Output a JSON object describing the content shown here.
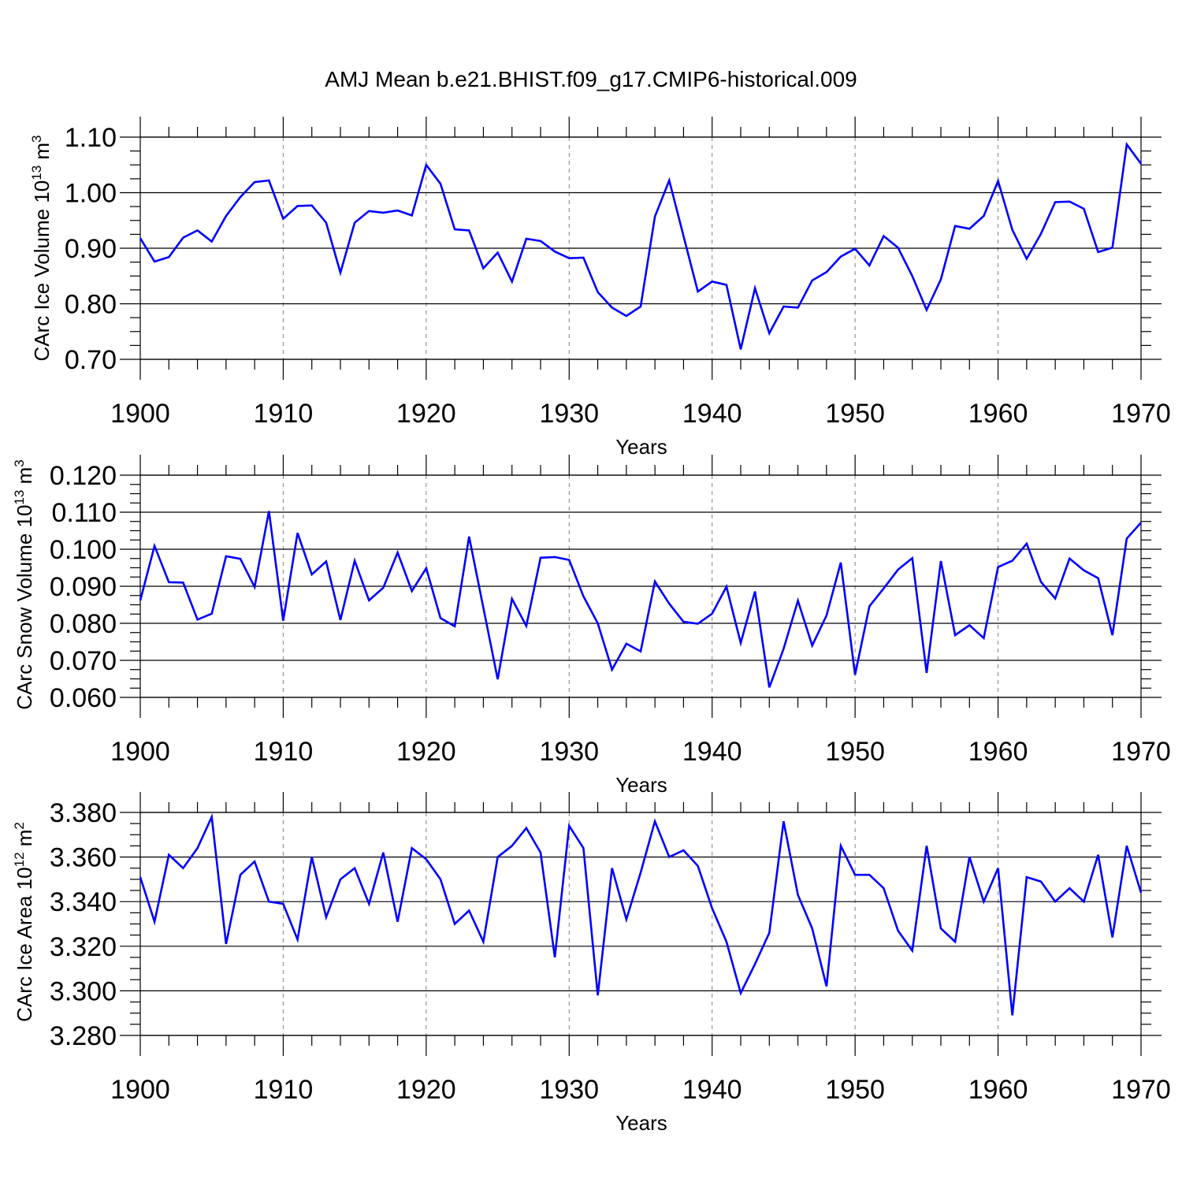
{
  "title": "AMJ Mean b.e21.BHIST.f09_g17.CMIP6-historical.009",
  "line_color": "#0000ff",
  "chart_data": [
    {
      "type": "line",
      "xlabel": "Years",
      "ylabel": "CArc Ice Volume 10",
      "ylabel_exp": "13",
      "ylabel_unit": " m",
      "ylabel_unit_exp": "3",
      "xlim": [
        1900,
        1970
      ],
      "ylim": [
        0.7,
        1.1
      ],
      "xticks": [
        1900,
        1910,
        1920,
        1930,
        1940,
        1950,
        1960,
        1970
      ],
      "xtick_labels": [
        "1900",
        "1910",
        "1920",
        "1930",
        "1940",
        "1950",
        "1960",
        "1970"
      ],
      "yticks": [
        0.7,
        0.8,
        0.9,
        1.0,
        1.1
      ],
      "ytick_labels": [
        "0.70",
        "0.80",
        "0.90",
        "1.00",
        "1.10"
      ],
      "grid": "vertical-dashed-at-major-x",
      "x_start": 1900,
      "values": [
        0.918,
        0.876,
        0.884,
        0.919,
        0.932,
        0.912,
        0.958,
        0.992,
        1.019,
        1.022,
        0.953,
        0.976,
        0.977,
        0.946,
        0.856,
        0.946,
        0.967,
        0.964,
        0.968,
        0.959,
        1.05,
        1.016,
        0.934,
        0.932,
        0.864,
        0.892,
        0.84,
        0.917,
        0.913,
        0.894,
        0.882,
        0.883,
        0.821,
        0.793,
        0.778,
        0.795,
        0.957,
        1.022,
        0.922,
        0.822,
        0.84,
        0.834,
        0.718,
        0.828,
        0.747,
        0.795,
        0.793,
        0.842,
        0.857,
        0.885,
        0.899,
        0.869,
        0.922,
        0.901,
        0.85,
        0.789,
        0.844,
        0.94,
        0.935,
        0.958,
        1.021,
        0.933,
        0.881,
        0.926,
        0.983,
        0.984,
        0.971,
        0.893,
        0.901,
        1.087,
        1.052
      ]
    },
    {
      "type": "line",
      "xlabel": "Years",
      "ylabel": "CArc Snow Volume 10",
      "ylabel_exp": "13",
      "ylabel_unit": " m",
      "ylabel_unit_exp": "3",
      "xlim": [
        1900,
        1970
      ],
      "ylim": [
        0.06,
        0.12
      ],
      "xticks": [
        1900,
        1910,
        1920,
        1930,
        1940,
        1950,
        1960,
        1970
      ],
      "xtick_labels": [
        "1900",
        "1910",
        "1920",
        "1930",
        "1940",
        "1950",
        "1960",
        "1970"
      ],
      "yticks": [
        0.06,
        0.07,
        0.08,
        0.09,
        0.1,
        0.11,
        0.12
      ],
      "ytick_labels": [
        "0.060",
        "0.070",
        "0.080",
        "0.090",
        "0.100",
        "0.110",
        "0.120"
      ],
      "grid": "vertical-dashed-at-major-x",
      "x_start": 1900,
      "values": [
        0.0862,
        0.1009,
        0.0911,
        0.091,
        0.081,
        0.0826,
        0.0981,
        0.0974,
        0.0898,
        0.1103,
        0.0807,
        0.1044,
        0.0932,
        0.0967,
        0.0809,
        0.0969,
        0.0862,
        0.0896,
        0.0991,
        0.0887,
        0.0949,
        0.0814,
        0.0792,
        0.1034,
        0.0842,
        0.0649,
        0.0866,
        0.0793,
        0.0977,
        0.0979,
        0.0971,
        0.0873,
        0.08,
        0.0675,
        0.0745,
        0.0724,
        0.0913,
        0.0853,
        0.0804,
        0.0799,
        0.0826,
        0.0899,
        0.0747,
        0.0886,
        0.0627,
        0.0731,
        0.0861,
        0.074,
        0.0821,
        0.0964,
        0.0661,
        0.0846,
        0.0894,
        0.0945,
        0.0976,
        0.0666,
        0.0968,
        0.0768,
        0.0795,
        0.076,
        0.0952,
        0.0969,
        0.1015,
        0.0912,
        0.0867,
        0.0975,
        0.0943,
        0.0922,
        0.0768,
        0.1029,
        0.1072
      ]
    },
    {
      "type": "line",
      "xlabel": "Years",
      "ylabel": "CArc Ice Area 10",
      "ylabel_exp": "12",
      "ylabel_unit": " m",
      "ylabel_unit_exp": "2",
      "xlim": [
        1900,
        1970
      ],
      "ylim": [
        3.28,
        3.38
      ],
      "xticks": [
        1900,
        1910,
        1920,
        1930,
        1940,
        1950,
        1960,
        1970
      ],
      "xtick_labels": [
        "1900",
        "1910",
        "1920",
        "1930",
        "1940",
        "1950",
        "1960",
        "1970"
      ],
      "yticks": [
        3.28,
        3.3,
        3.32,
        3.34,
        3.36,
        3.38
      ],
      "ytick_labels": [
        "3.280",
        "3.300",
        "3.320",
        "3.340",
        "3.360",
        "3.380"
      ],
      "grid": "vertical-dashed-at-major-x",
      "x_start": 1900,
      "values": [
        3.351,
        3.331,
        3.361,
        3.355,
        3.364,
        3.378,
        3.321,
        3.352,
        3.358,
        3.34,
        3.339,
        3.323,
        3.36,
        3.333,
        3.35,
        3.355,
        3.339,
        3.362,
        3.331,
        3.364,
        3.359,
        3.35,
        3.33,
        3.336,
        3.322,
        3.36,
        3.365,
        3.373,
        3.362,
        3.315,
        3.374,
        3.364,
        3.298,
        3.355,
        3.332,
        3.353,
        3.376,
        3.36,
        3.363,
        3.356,
        3.337,
        3.322,
        3.299,
        3.312,
        3.326,
        3.376,
        3.343,
        3.328,
        3.302,
        3.365,
        3.352,
        3.352,
        3.346,
        3.327,
        3.318,
        3.365,
        3.328,
        3.322,
        3.36,
        3.34,
        3.355,
        3.289,
        3.351,
        3.349,
        3.34,
        3.346,
        3.34,
        3.361,
        3.324,
        3.365,
        3.344
      ]
    }
  ]
}
